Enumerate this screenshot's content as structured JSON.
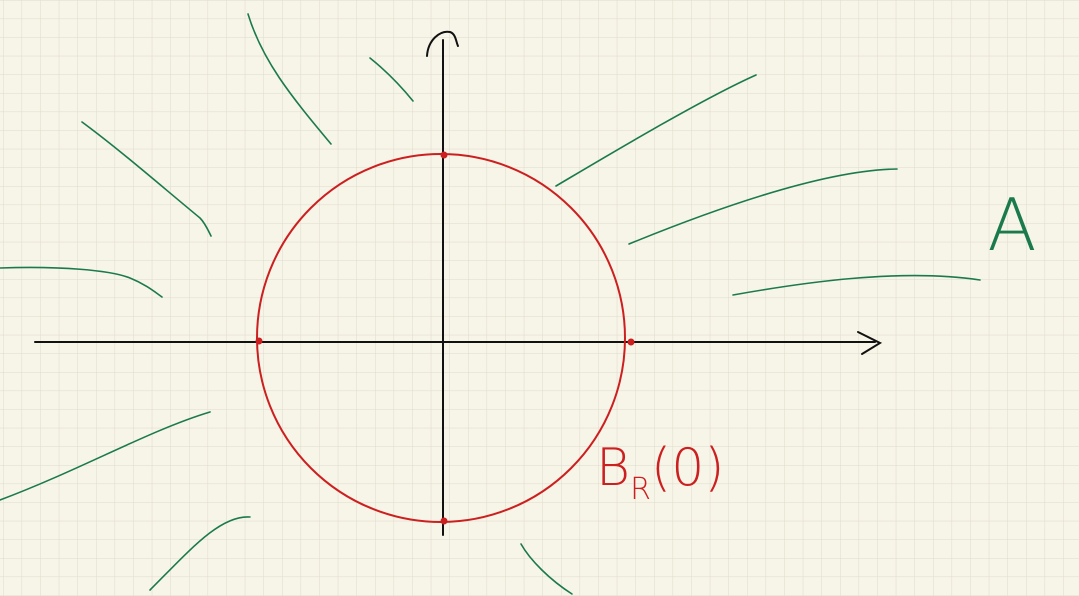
{
  "region_label": "A",
  "set_label": {
    "main": "B",
    "subscript": "R",
    "argument": "(0)"
  }
}
